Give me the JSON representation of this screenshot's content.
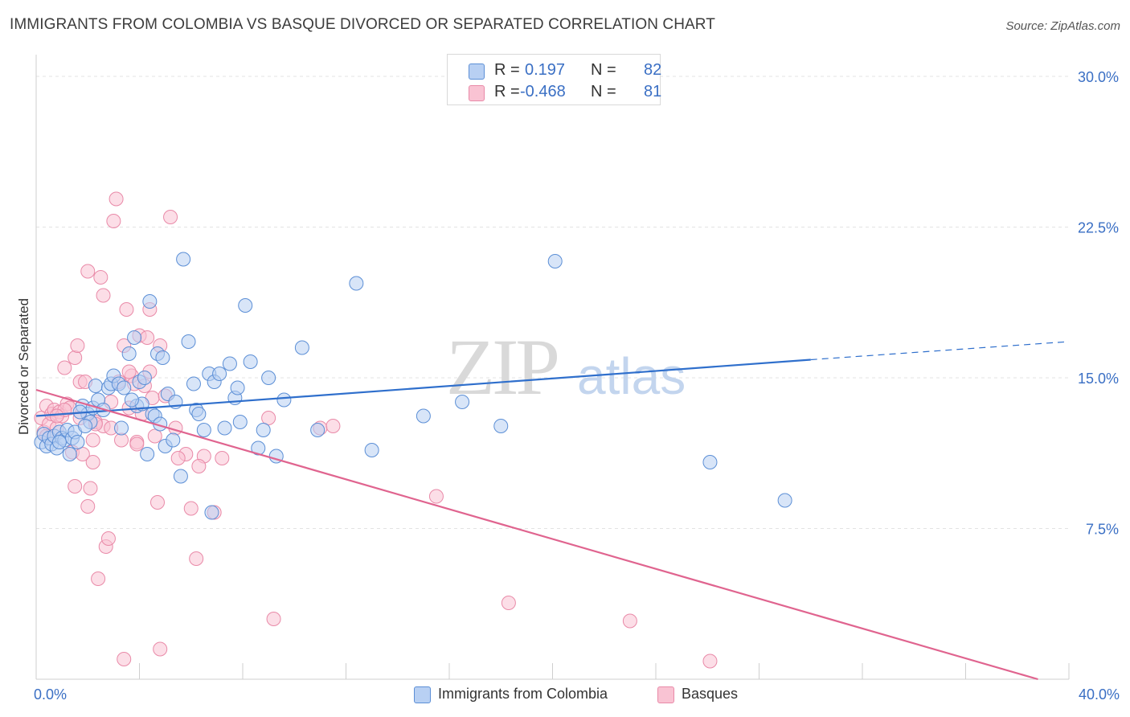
{
  "header": {
    "title": "IMMIGRANTS FROM COLOMBIA VS BASQUE DIVORCED OR SEPARATED CORRELATION CHART",
    "source": "Source: ZipAtlas.com"
  },
  "watermark": {
    "zip": "ZIP",
    "atlas": "atlas"
  },
  "legend": {
    "r_label": "R =",
    "n_label": "N =",
    "series1": {
      "r": "0.197",
      "n": "82"
    },
    "series2": {
      "r": "-0.468",
      "n": "81"
    }
  },
  "colors": {
    "blue_fill": "#b8d0f3",
    "blue_stroke": "#5c8fd6",
    "blue_line": "#2f6fcc",
    "pink_fill": "#f9c3d3",
    "pink_stroke": "#e98aa8",
    "pink_line": "#e0648f",
    "axis_text": "#3a6fc4",
    "grid": "#e3e3e3"
  },
  "chart_data": {
    "type": "scatter",
    "title": "IMMIGRANTS FROM COLOMBIA VS BASQUE DIVORCED OR SEPARATED CORRELATION CHART",
    "xlabel": "",
    "ylabel": "Divorced or Separated",
    "xlim": [
      0,
      40
    ],
    "ylim": [
      0,
      30.8
    ],
    "x_tick_labels": [
      "0.0%",
      "40.0%"
    ],
    "y_ticks": [
      7.5,
      15.0,
      22.5,
      30.0
    ],
    "y_tick_labels": [
      "7.5%",
      "15.0%",
      "22.5%",
      "30.0%"
    ],
    "grid": true,
    "legend_position": "top-center",
    "series": [
      {
        "name": "Immigrants from Colombia",
        "color": "#5c8fd6",
        "r": 0.197,
        "n": 82,
        "trend": {
          "x": [
            0,
            30
          ],
          "y": [
            13.1,
            15.9
          ],
          "dashed_to": [
            40,
            16.8
          ]
        },
        "points": [
          [
            0.2,
            11.8
          ],
          [
            0.3,
            12.2
          ],
          [
            0.4,
            11.6
          ],
          [
            0.5,
            12.0
          ],
          [
            0.6,
            11.7
          ],
          [
            0.7,
            12.1
          ],
          [
            0.8,
            11.5
          ],
          [
            0.9,
            12.3
          ],
          [
            1.0,
            12.0
          ],
          [
            1.1,
            11.9
          ],
          [
            1.2,
            12.4
          ],
          [
            1.3,
            11.2
          ],
          [
            1.4,
            12.0
          ],
          [
            1.5,
            12.3
          ],
          [
            1.6,
            11.8
          ],
          [
            1.8,
            13.6
          ],
          [
            2.0,
            13.2
          ],
          [
            2.2,
            13.5
          ],
          [
            2.3,
            14.6
          ],
          [
            2.4,
            13.9
          ],
          [
            2.6,
            13.4
          ],
          [
            2.8,
            14.5
          ],
          [
            2.9,
            14.7
          ],
          [
            3.0,
            15.1
          ],
          [
            3.2,
            14.7
          ],
          [
            3.4,
            14.5
          ],
          [
            3.6,
            16.2
          ],
          [
            3.8,
            17.0
          ],
          [
            3.9,
            13.6
          ],
          [
            4.0,
            14.8
          ],
          [
            4.1,
            13.7
          ],
          [
            4.2,
            15.0
          ],
          [
            4.3,
            11.2
          ],
          [
            4.4,
            18.8
          ],
          [
            4.5,
            13.2
          ],
          [
            4.6,
            13.1
          ],
          [
            4.7,
            16.2
          ],
          [
            4.8,
            12.7
          ],
          [
            5.0,
            11.6
          ],
          [
            5.1,
            14.2
          ],
          [
            5.3,
            11.9
          ],
          [
            5.6,
            10.1
          ],
          [
            5.7,
            20.9
          ],
          [
            5.9,
            16.8
          ],
          [
            6.1,
            14.7
          ],
          [
            6.2,
            13.4
          ],
          [
            6.3,
            13.2
          ],
          [
            6.5,
            12.4
          ],
          [
            6.7,
            15.2
          ],
          [
            6.9,
            14.8
          ],
          [
            7.1,
            15.2
          ],
          [
            7.3,
            12.5
          ],
          [
            7.5,
            15.7
          ],
          [
            7.7,
            14.0
          ],
          [
            7.9,
            12.8
          ],
          [
            8.1,
            18.6
          ],
          [
            8.3,
            15.8
          ],
          [
            8.6,
            11.5
          ],
          [
            8.8,
            12.4
          ],
          [
            9.0,
            15.0
          ],
          [
            9.3,
            11.1
          ],
          [
            9.6,
            13.9
          ],
          [
            10.3,
            16.5
          ],
          [
            10.9,
            12.4
          ],
          [
            12.4,
            19.7
          ],
          [
            13.0,
            11.4
          ],
          [
            15.0,
            13.1
          ],
          [
            16.5,
            13.8
          ],
          [
            18.0,
            12.6
          ],
          [
            20.1,
            20.8
          ],
          [
            26.1,
            10.8
          ],
          [
            29.0,
            8.9
          ],
          [
            1.7,
            13.3
          ],
          [
            2.1,
            12.8
          ],
          [
            3.3,
            12.5
          ],
          [
            5.4,
            13.8
          ],
          [
            6.8,
            8.3
          ],
          [
            0.9,
            11.8
          ],
          [
            1.9,
            12.6
          ],
          [
            4.9,
            16.0
          ],
          [
            7.8,
            14.5
          ],
          [
            3.7,
            13.9
          ]
        ]
      },
      {
        "name": "Basques",
        "color": "#e98aa8",
        "r": -0.468,
        "n": 81,
        "trend": {
          "x": [
            0,
            38.8
          ],
          "y": [
            14.4,
            0.0
          ]
        },
        "points": [
          [
            0.2,
            13.0
          ],
          [
            0.3,
            12.3
          ],
          [
            0.4,
            13.6
          ],
          [
            0.5,
            12.7
          ],
          [
            0.6,
            13.2
          ],
          [
            0.7,
            13.4
          ],
          [
            0.8,
            12.5
          ],
          [
            0.9,
            13.3
          ],
          [
            1.0,
            13.1
          ],
          [
            1.1,
            15.5
          ],
          [
            1.2,
            13.7
          ],
          [
            1.3,
            13.5
          ],
          [
            1.4,
            11.3
          ],
          [
            1.5,
            16.0
          ],
          [
            1.6,
            16.6
          ],
          [
            1.7,
            14.8
          ],
          [
            1.8,
            11.2
          ],
          [
            1.9,
            14.8
          ],
          [
            2.0,
            8.6
          ],
          [
            2.1,
            9.5
          ],
          [
            2.2,
            11.9
          ],
          [
            2.3,
            12.8
          ],
          [
            2.4,
            5.0
          ],
          [
            2.5,
            20.0
          ],
          [
            2.6,
            12.6
          ],
          [
            2.7,
            6.6
          ],
          [
            2.8,
            7.0
          ],
          [
            2.9,
            13.8
          ],
          [
            3.0,
            22.8
          ],
          [
            3.1,
            23.9
          ],
          [
            3.2,
            14.8
          ],
          [
            3.3,
            11.9
          ],
          [
            3.4,
            16.6
          ],
          [
            3.5,
            18.4
          ],
          [
            3.6,
            13.5
          ],
          [
            3.7,
            15.1
          ],
          [
            3.8,
            14.7
          ],
          [
            3.9,
            11.8
          ],
          [
            4.0,
            17.1
          ],
          [
            4.1,
            13.2
          ],
          [
            4.2,
            14.6
          ],
          [
            4.3,
            17.0
          ],
          [
            4.4,
            18.4
          ],
          [
            4.5,
            14.0
          ],
          [
            4.6,
            12.1
          ],
          [
            4.7,
            8.8
          ],
          [
            4.8,
            16.6
          ],
          [
            5.0,
            14.1
          ],
          [
            5.2,
            23.0
          ],
          [
            5.4,
            12.5
          ],
          [
            5.8,
            11.2
          ],
          [
            6.0,
            8.5
          ],
          [
            6.2,
            6.0
          ],
          [
            6.5,
            11.1
          ],
          [
            6.9,
            8.3
          ],
          [
            7.2,
            11.0
          ],
          [
            9.0,
            13.0
          ],
          [
            9.2,
            3.0
          ],
          [
            11.0,
            12.5
          ],
          [
            11.5,
            12.6
          ],
          [
            15.5,
            9.1
          ],
          [
            18.3,
            3.8
          ],
          [
            23.0,
            2.9
          ],
          [
            26.1,
            0.9
          ],
          [
            1.1,
            13.4
          ],
          [
            2.3,
            12.7
          ],
          [
            3.4,
            1.0
          ],
          [
            4.8,
            1.5
          ],
          [
            5.5,
            11.0
          ],
          [
            6.3,
            10.6
          ],
          [
            0.4,
            12.1
          ],
          [
            2.6,
            19.1
          ],
          [
            2.2,
            10.8
          ],
          [
            3.6,
            15.3
          ],
          [
            1.5,
            9.6
          ],
          [
            4.4,
            15.3
          ],
          [
            0.8,
            13.1
          ],
          [
            1.7,
            13.0
          ],
          [
            2.9,
            12.5
          ],
          [
            3.9,
            11.7
          ],
          [
            2.0,
            20.3
          ]
        ]
      }
    ]
  },
  "bottom_legend": {
    "item1": "Immigrants from Colombia",
    "item2": "Basques"
  }
}
